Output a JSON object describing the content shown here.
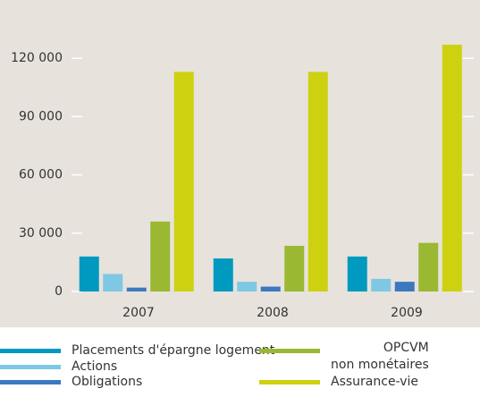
{
  "chart_data": {
    "type": "bar",
    "categories": [
      "2007",
      "2008",
      "2009"
    ],
    "series": [
      {
        "name": "Placements d'épargne logement",
        "color": "#0099c0",
        "values": [
          18000,
          17000,
          18000
        ]
      },
      {
        "name": "Actions",
        "color": "#7ec8e3",
        "values": [
          9000,
          5000,
          6500
        ]
      },
      {
        "name": "Obligations",
        "color": "#3c78c0",
        "values": [
          2000,
          2500,
          5000
        ]
      },
      {
        "name": "OPCVM\nnon monétaires",
        "color": "#9ab832",
        "values": [
          36000,
          23500,
          25000
        ]
      },
      {
        "name": "Assurance-vie",
        "color": "#cdd10f",
        "values": [
          113000,
          113000,
          127000
        ]
      }
    ],
    "ylim": [
      0,
      150000
    ],
    "yticks": [
      {
        "value": 0,
        "label": "0"
      },
      {
        "value": 30000,
        "label": "30 000"
      },
      {
        "value": 60000,
        "label": "60 000"
      },
      {
        "value": 90000,
        "label": "90 000"
      },
      {
        "value": 120000,
        "label": "120 000"
      }
    ],
    "grid": true
  }
}
